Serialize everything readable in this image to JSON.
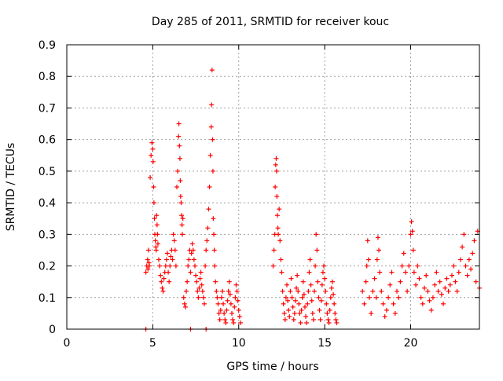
{
  "chart_data": {
    "type": "scatter",
    "title": "Day 285 of 2011, SRMTID for receiver kouc",
    "xlabel": "GPS time / hours",
    "ylabel": "SRMTID / TECUs",
    "xlim": [
      0,
      24
    ],
    "ylim": [
      0,
      0.9
    ],
    "xticks": [
      0,
      5,
      10,
      15,
      20
    ],
    "yticks": [
      0,
      0.1,
      0.2,
      0.3,
      0.4,
      0.5,
      0.6,
      0.7,
      0.8,
      0.9
    ],
    "xtick_labels": [
      "0",
      "5",
      "10",
      "15",
      "20"
    ],
    "ytick_labels": [
      "0",
      "0.1",
      "0.2",
      "0.3",
      "0.4",
      "0.5",
      "0.6",
      "0.7",
      "0.8",
      "0.9"
    ],
    "grid": true,
    "marker": "+",
    "color": "#ff0000",
    "series": [
      {
        "x": [
          4.6,
          4.65,
          4.7,
          4.72,
          4.75,
          4.78,
          4.8,
          4.85,
          4.9,
          4.95,
          5.0,
          5.02,
          5.05,
          5.07,
          5.1,
          5.12,
          5.15,
          5.18,
          5.2,
          5.22,
          5.25,
          5.28,
          5.3,
          5.35,
          5.4,
          5.45,
          5.5,
          5.55,
          5.6,
          5.65,
          5.7,
          5.75,
          5.8,
          5.85,
          5.9,
          5.95,
          6.0,
          6.05,
          6.1,
          6.15,
          6.2,
          6.25,
          6.3,
          6.35,
          6.4,
          6.45,
          6.5,
          6.52,
          6.55,
          6.58,
          6.6,
          6.62,
          6.65,
          6.68,
          6.7,
          6.72,
          6.75,
          6.8,
          6.85,
          6.9,
          6.95,
          7.0,
          7.05,
          7.1,
          7.15,
          7.2,
          7.25,
          7.3,
          7.35,
          7.4,
          7.45,
          7.5,
          7.55,
          7.6,
          7.65,
          7.7,
          7.75,
          7.8,
          7.85,
          7.9,
          7.95,
          8.0,
          8.05,
          8.1,
          8.15,
          8.2,
          8.25,
          8.3,
          8.35,
          8.4,
          8.42,
          8.45,
          8.48,
          8.5,
          8.52,
          8.55,
          8.58,
          8.6,
          8.65,
          8.7,
          8.75,
          8.8,
          8.85,
          8.9,
          8.95,
          9.0,
          9.05,
          9.1,
          9.15,
          9.2,
          9.25,
          9.3,
          9.35,
          9.4,
          9.45,
          9.5,
          9.55,
          9.6,
          9.65,
          9.7,
          9.75,
          9.8,
          9.85,
          9.9,
          9.95,
          10.0,
          10.05,
          10.1
        ],
        "y": [
          0.18,
          0.2,
          0.22,
          0.19,
          0.25,
          0.21,
          0.2,
          0.48,
          0.55,
          0.59,
          0.57,
          0.53,
          0.45,
          0.4,
          0.35,
          0.3,
          0.28,
          0.26,
          0.25,
          0.36,
          0.33,
          0.3,
          0.27,
          0.22,
          0.2,
          0.17,
          0.15,
          0.13,
          0.12,
          0.16,
          0.18,
          0.2,
          0.22,
          0.24,
          0.18,
          0.15,
          0.2,
          0.23,
          0.25,
          0.22,
          0.3,
          0.28,
          0.25,
          0.2,
          0.45,
          0.5,
          0.61,
          0.65,
          0.58,
          0.54,
          0.47,
          0.42,
          0.4,
          0.36,
          0.33,
          0.3,
          0.35,
          0.1,
          0.08,
          0.07,
          0.12,
          0.15,
          0.2,
          0.22,
          0.25,
          0.18,
          0.24,
          0.27,
          0.25,
          0.22,
          0.2,
          0.17,
          0.15,
          0.12,
          0.1,
          0.13,
          0.16,
          0.18,
          0.14,
          0.12,
          0.1,
          0.08,
          0.2,
          0.25,
          0.28,
          0.32,
          0.38,
          0.45,
          0.55,
          0.64,
          0.71,
          0.82,
          0.6,
          0.5,
          0.35,
          0.3,
          0.25,
          0.2,
          0.15,
          0.12,
          0.1,
          0.08,
          0.05,
          0.03,
          0.06,
          0.1,
          0.12,
          0.08,
          0.05,
          0.03,
          0.02,
          0.06,
          0.09,
          0.12,
          0.15,
          0.11,
          0.08,
          0.05,
          0.03,
          0.02,
          0.07,
          0.1,
          0.14,
          0.12,
          0.09,
          0.06,
          0.04,
          0.02
        ]
      },
      {
        "x": [
          12.0,
          12.05,
          12.1,
          12.12,
          12.15,
          12.18,
          12.2,
          12.22,
          12.25,
          12.28,
          12.3,
          12.35,
          12.4,
          12.45,
          12.5,
          12.55,
          12.6,
          12.65,
          12.7,
          12.75,
          12.8,
          12.85,
          12.9,
          12.95,
          13.0,
          13.05,
          13.1,
          13.15,
          13.2,
          13.25,
          13.3,
          13.35,
          13.4,
          13.45,
          13.5,
          13.55,
          13.6,
          13.65,
          13.7,
          13.75,
          13.8,
          13.85,
          13.9,
          13.95,
          14.0,
          14.05,
          14.1,
          14.15,
          14.2,
          14.25,
          14.3,
          14.35,
          14.4,
          14.45,
          14.5,
          14.55,
          14.6,
          14.65,
          14.7,
          14.75,
          14.8,
          14.85,
          14.9,
          14.95,
          15.0,
          15.05,
          15.1,
          15.15,
          15.2,
          15.25,
          15.3,
          15.35,
          15.4,
          15.45,
          15.5,
          15.55,
          15.6,
          15.65,
          15.7
        ],
        "y": [
          0.2,
          0.25,
          0.3,
          0.45,
          0.52,
          0.54,
          0.5,
          0.42,
          0.36,
          0.32,
          0.3,
          0.38,
          0.28,
          0.22,
          0.18,
          0.12,
          0.08,
          0.05,
          0.03,
          0.1,
          0.14,
          0.09,
          0.06,
          0.04,
          0.12,
          0.16,
          0.1,
          0.07,
          0.03,
          0.05,
          0.09,
          0.13,
          0.17,
          0.12,
          0.08,
          0.05,
          0.02,
          0.06,
          0.1,
          0.15,
          0.11,
          0.07,
          0.04,
          0.02,
          0.08,
          0.12,
          0.18,
          0.22,
          0.14,
          0.09,
          0.05,
          0.03,
          0.12,
          0.2,
          0.3,
          0.25,
          0.15,
          0.1,
          0.06,
          0.03,
          0.09,
          0.14,
          0.18,
          0.2,
          0.16,
          0.12,
          0.08,
          0.05,
          0.03,
          0.02,
          0.06,
          0.1,
          0.13,
          0.15,
          0.11,
          0.08,
          0.05,
          0.03,
          0.02
        ]
      },
      {
        "x": [
          17.2,
          17.3,
          17.4,
          17.45,
          17.5,
          17.55,
          17.6,
          17.7,
          17.8,
          17.9,
          18.0,
          18.05,
          18.1,
          18.15,
          18.2,
          18.3,
          18.4,
          18.5,
          18.6,
          18.7,
          18.8,
          18.9,
          19.0,
          19.1,
          19.2,
          19.3,
          19.4,
          19.5,
          19.6,
          19.7,
          19.8,
          19.9,
          20.0,
          20.05,
          20.1,
          20.15,
          20.2,
          20.3,
          20.4,
          20.5,
          20.6,
          20.7,
          20.8,
          20.9,
          21.0,
          21.1,
          21.2,
          21.3,
          21.4,
          21.5,
          21.6,
          21.7,
          21.8,
          21.9,
          22.0,
          22.1,
          22.2,
          22.3,
          22.4,
          22.5,
          22.6,
          22.7,
          22.8,
          22.9,
          23.0,
          23.1,
          23.2,
          23.3,
          23.4,
          23.5,
          23.6,
          23.7,
          23.8,
          23.9,
          24.0
        ],
        "y": [
          0.12,
          0.08,
          0.15,
          0.2,
          0.28,
          0.22,
          0.1,
          0.05,
          0.12,
          0.16,
          0.1,
          0.22,
          0.29,
          0.25,
          0.18,
          0.12,
          0.08,
          0.04,
          0.06,
          0.1,
          0.14,
          0.18,
          0.08,
          0.05,
          0.12,
          0.1,
          0.15,
          0.2,
          0.24,
          0.18,
          0.12,
          0.2,
          0.3,
          0.34,
          0.31,
          0.25,
          0.18,
          0.14,
          0.2,
          0.16,
          0.1,
          0.08,
          0.13,
          0.17,
          0.12,
          0.09,
          0.06,
          0.1,
          0.14,
          0.18,
          0.12,
          0.15,
          0.11,
          0.08,
          0.13,
          0.16,
          0.12,
          0.14,
          0.17,
          0.2,
          0.15,
          0.12,
          0.18,
          0.22,
          0.26,
          0.3,
          0.2,
          0.17,
          0.22,
          0.19,
          0.24,
          0.28,
          0.15,
          0.31,
          0.13
        ]
      },
      {
        "x": [
          4.6,
          7.2,
          8.1
        ],
        "y": [
          0.0,
          0.0,
          0.0
        ]
      }
    ]
  }
}
